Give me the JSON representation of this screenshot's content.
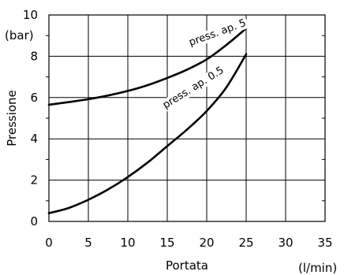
{
  "chart_data": {
    "type": "line",
    "xlabel": "Portata",
    "xunit": "(l/min)",
    "ylabel": "Pressione",
    "yunit": "(bar)",
    "xlim": [
      0,
      35
    ],
    "ylim": [
      0,
      10
    ],
    "x_ticks": [
      "0",
      "5",
      "10",
      "15",
      "20",
      "25",
      "30",
      "35"
    ],
    "y_ticks": [
      "0",
      "2",
      "4",
      "6",
      "8",
      "10"
    ],
    "grid": true,
    "series": [
      {
        "name": "press. ap. 5",
        "x": [
          0,
          2.5,
          5,
          7.5,
          10,
          12.5,
          15,
          17.5,
          20,
          22.5,
          25
        ],
        "y": [
          5.65,
          5.78,
          5.92,
          6.1,
          6.32,
          6.6,
          6.95,
          7.35,
          7.85,
          8.55,
          9.35
        ]
      },
      {
        "name": "press. ap. 0.5",
        "x": [
          0,
          2.5,
          5,
          7.5,
          10,
          12.5,
          15,
          17.5,
          20,
          22.5,
          25
        ],
        "y": [
          0.4,
          0.65,
          1.05,
          1.55,
          2.15,
          2.85,
          3.65,
          4.45,
          5.35,
          6.5,
          8.1
        ]
      }
    ]
  }
}
